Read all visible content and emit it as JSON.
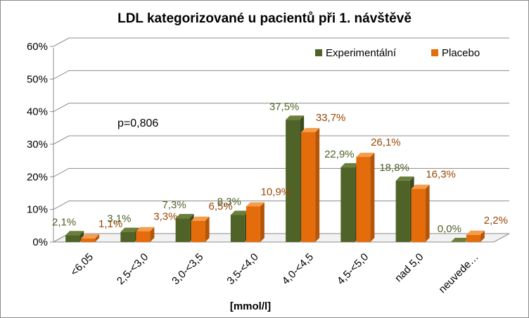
{
  "chart_data": {
    "type": "bar",
    "title": "LDL kategorizované u pacientů při 1. návštěvě",
    "xlabel": "[mmol/l]",
    "ylabel": "",
    "categories": [
      "<6,05",
      "2,5-<3,0",
      "3,0-<3,5",
      "3,5-<4,0",
      "4,0-<4,5",
      "4,5-<5,0",
      "nad 5,0",
      "neuvede…"
    ],
    "series": [
      {
        "name": "Experimentální",
        "values": [
          2.1,
          3.1,
          7.3,
          8.3,
          37.5,
          22.9,
          18.8,
          0.0
        ],
        "labels": [
          "2,1%",
          "3,1%",
          "7,3%",
          "8,3%",
          "37,5%",
          "22,9%",
          "18,8%",
          "0,0%"
        ]
      },
      {
        "name": "Placebo",
        "values": [
          1.1,
          3.3,
          6.5,
          10.9,
          33.7,
          26.1,
          16.3,
          2.2
        ],
        "labels": [
          "1,1%",
          "3,3%",
          "6,5%",
          "10,9%",
          "33,7%",
          "26,1%",
          "16,3%",
          "2,2%"
        ]
      }
    ],
    "ylim": [
      0,
      60
    ],
    "yticks": [
      "0%",
      "10%",
      "20%",
      "30%",
      "40%",
      "50%",
      "60%"
    ],
    "grid": true,
    "legend_position": "top-right",
    "annotation": "p=0,806",
    "colors": {
      "Experimentální": {
        "front": "#4f6228",
        "top": "#6b7f3a",
        "side": "#3b4a1d",
        "label": "#4f6228"
      },
      "Placebo": {
        "front": "#e46c0a",
        "top": "#f59d4a",
        "side": "#b45508",
        "label": "#984807"
      }
    }
  }
}
